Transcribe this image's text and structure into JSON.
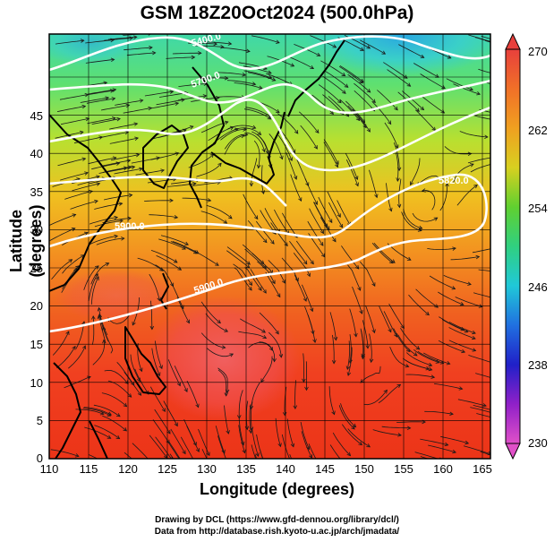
{
  "title": "GSM 18Z20Oct2024 (500.0hPa)",
  "xlabel": "Longitude (degrees)",
  "ylabel": "Latitude  (degrees)",
  "credit_line1": "Drawing by DCL (https://www.gfd-dennou.org/library/dcl/)",
  "credit_line2": "Data from http://database.rish.kyoto-u.ac.jp/arch/jmadata/",
  "x_ticks": [
    "110",
    "115",
    "120",
    "125",
    "130",
    "135",
    "140",
    "145",
    "150",
    "155",
    "160",
    "165"
  ],
  "y_ticks": [
    "0",
    "5",
    "10",
    "15",
    "20",
    "25",
    "30",
    "35",
    "40",
    "45"
  ],
  "colorbar_ticks": [
    "270",
    "262",
    "254",
    "246",
    "238",
    "230"
  ],
  "contour_labels": [
    "5400.0",
    "5700.0",
    "5820.0",
    "5900.0",
    "5900.0"
  ],
  "colors": {
    "colorbar_top": "#e8403c",
    "colorbar_bottom": "#e050c8",
    "contour": "#ffffff",
    "coastline": "#000000",
    "streamline": "#1a1a1a"
  }
}
